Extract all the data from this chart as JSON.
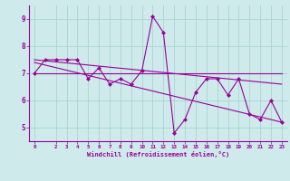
{
  "background_color": "#ceeaea",
  "line_color": "#990099",
  "grid_color": "#aad4d4",
  "xlabel": "Windchill (Refroidissement éolien,°C)",
  "xlabel_color": "#990099",
  "ylabel_ticks": [
    5,
    6,
    7,
    8,
    9
  ],
  "xlim": [
    -0.5,
    23.5
  ],
  "ylim": [
    4.5,
    9.5
  ],
  "xticks": [
    0,
    2,
    3,
    4,
    5,
    6,
    7,
    8,
    9,
    10,
    11,
    12,
    13,
    14,
    15,
    16,
    17,
    18,
    19,
    20,
    21,
    22,
    23
  ],
  "series1_x": [
    0,
    1,
    2,
    3,
    4,
    5,
    6,
    7,
    8,
    9,
    10,
    11,
    12,
    13,
    14,
    15,
    16,
    17,
    18,
    19,
    20,
    21,
    22,
    23
  ],
  "series1_y": [
    7.0,
    7.5,
    7.5,
    7.5,
    7.5,
    6.8,
    7.2,
    6.6,
    6.8,
    6.6,
    7.1,
    9.1,
    8.5,
    4.8,
    5.3,
    6.3,
    6.8,
    6.8,
    6.2,
    6.8,
    5.5,
    5.3,
    6.0,
    5.2
  ],
  "series2_x": [
    0,
    23
  ],
  "series2_y": [
    7.0,
    7.0
  ],
  "series3_x": [
    0,
    23
  ],
  "series3_y": [
    7.5,
    6.6
  ],
  "series4_x": [
    0,
    23
  ],
  "series4_y": [
    7.4,
    5.2
  ],
  "markersize": 2.5,
  "linewidth": 0.8
}
